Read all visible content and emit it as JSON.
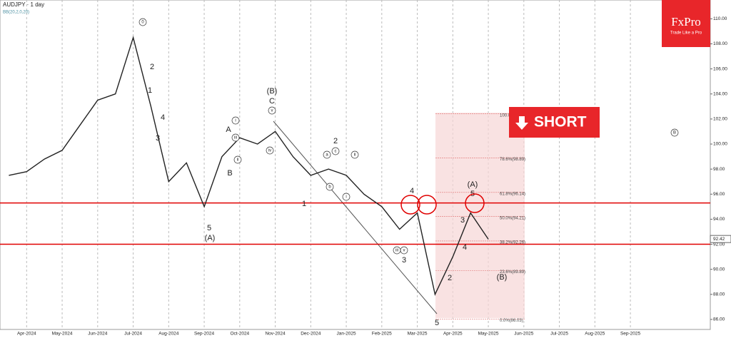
{
  "chart_data": {
    "type": "line",
    "title": "AUDJPY · 1 day",
    "indicator": "BB(20,2,0,20)",
    "categories": [
      null,
      "Apr-2024",
      null,
      "May-2024",
      null,
      "Jun-2024",
      null,
      "Jul-2024",
      null,
      "Aug-2024",
      null,
      "Sep-2024",
      null,
      "Oct-2024",
      null,
      "Nov-2024",
      null,
      "Dec-2024",
      null,
      "Jan-2025",
      null,
      "Feb-2025",
      null,
      "Mar-2025",
      null,
      "Apr-2025",
      null,
      "May-2025",
      null,
      "Jun-2025",
      null,
      "Jul-2025",
      null,
      "Aug-2025",
      null,
      "Sep-2025",
      null,
      null,
      null,
      null
    ],
    "series": [
      {
        "name": "AUDJPY",
        "color": "#222222",
        "values": [
          97.5,
          97.8,
          98.8,
          99.5,
          101.5,
          103.5,
          104.0,
          108.5,
          103.0,
          97.0,
          98.5,
          95.0,
          99.0,
          100.5,
          100.0,
          101.0,
          99.0,
          97.5,
          98.0,
          97.5,
          96.0,
          95.0,
          93.2,
          94.5,
          88.0,
          91.0,
          94.5,
          92.4,
          null,
          null,
          null,
          null,
          null,
          null,
          null,
          null,
          null,
          null,
          null,
          null
        ]
      }
    ],
    "ylim": [
      85.2,
      111.5
    ],
    "yticks": [
      {
        "value": 86,
        "label": "86.00"
      },
      {
        "value": 88,
        "label": "88.00"
      },
      {
        "value": 90,
        "label": "90.00"
      },
      {
        "value": 92,
        "label": "92.00"
      },
      {
        "value": 94,
        "label": "94.00"
      },
      {
        "value": 96,
        "label": "96.00"
      },
      {
        "value": 98,
        "label": "98.00"
      },
      {
        "value": 100,
        "label": "100.00"
      },
      {
        "value": 102,
        "label": "102.00"
      },
      {
        "value": 104,
        "label": "104.00"
      },
      {
        "value": 106,
        "label": "106.00"
      },
      {
        "value": 108,
        "label": "108.00"
      },
      {
        "value": 110,
        "label": "110.00"
      }
    ],
    "last_price": 92.42,
    "levels": [
      95.3,
      92.0
    ],
    "level_color": "#e00000",
    "fib_levels": [
      {
        "value": 102.41,
        "label": "100.0%"
      },
      {
        "value": 98.89,
        "label": "78.6%(98.89)"
      },
      {
        "value": 96.14,
        "label": "61.8%(96.14)"
      },
      {
        "value": 94.21,
        "label": "50.0%(94.21)"
      },
      {
        "value": 92.26,
        "label": "38.2%(92.26)"
      },
      {
        "value": 89.89,
        "label": "23.6%(89.89)"
      },
      {
        "value": 86.03,
        "label": "0.0%(86.03)"
      }
    ],
    "annotations": [
      "0",
      "2",
      "1",
      "4",
      "3",
      "5",
      "(A)",
      "A",
      "B",
      "(B)",
      "C",
      "v",
      "iii",
      "iv",
      "ii",
      "i",
      "2",
      "a",
      "c",
      "b",
      "ii",
      "i",
      "1",
      "4",
      "iii",
      "v",
      "3",
      "5",
      "3",
      "4",
      "2",
      "(A)",
      "5",
      "(B)",
      "B"
    ],
    "signal": "SHORT",
    "brand": "FxPro",
    "tagline": "Trade Like a Pro"
  }
}
